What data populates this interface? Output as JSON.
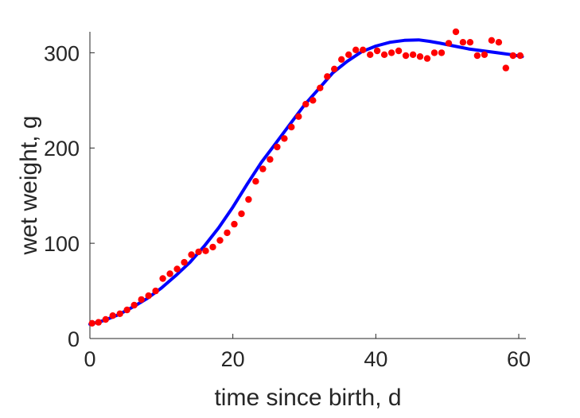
{
  "chart_data": {
    "type": "scatter",
    "xlabel": "time since birth, d",
    "ylabel": "wet weight, g",
    "xlim": [
      0,
      61
    ],
    "ylim": [
      0,
      322
    ],
    "xticks": [
      0,
      20,
      40,
      60
    ],
    "yticks": [
      0,
      100,
      200,
      300
    ],
    "grid": false,
    "legend": "none",
    "series": [
      {
        "kind": "scatter",
        "color": "#ff0000",
        "x": [
          0.3,
          1.2,
          2.2,
          3.2,
          4.2,
          5.2,
          6.2,
          7.2,
          8.2,
          9.2,
          10.2,
          11.2,
          12.2,
          13.2,
          14.2,
          15.2,
          16.2,
          17.2,
          18.2,
          19.2,
          20.2,
          21.2,
          22.2,
          23.2,
          24.2,
          25.2,
          26.2,
          27.2,
          28.2,
          29.2,
          30.2,
          31.2,
          32.2,
          33.2,
          34.2,
          35.2,
          36.2,
          37.2,
          38.2,
          39.2,
          40.2,
          41.2,
          42.2,
          43.2,
          44.2,
          45.2,
          46.2,
          47.2,
          48.2,
          49.2,
          50.2,
          51.2,
          52.2,
          53.2,
          54.2,
          55.2,
          56.2,
          57.2,
          58.2,
          59.2,
          60.2
        ],
        "y": [
          16,
          17,
          20,
          24,
          26,
          30,
          35,
          41,
          45,
          50,
          63,
          68,
          73,
          80,
          88,
          91,
          92,
          96,
          103,
          111,
          120,
          131,
          146,
          165,
          178,
          188,
          201,
          210,
          222,
          233,
          246,
          250,
          263,
          275,
          283,
          293,
          298,
          303,
          303,
          298,
          302,
          298,
          300,
          302,
          297,
          298,
          296,
          294,
          300,
          300,
          310,
          322,
          311,
          311,
          297,
          298,
          313,
          311,
          284,
          297,
          297
        ]
      },
      {
        "kind": "line",
        "color": "#0000ff",
        "x": [
          0,
          2,
          4,
          6,
          8,
          10,
          12,
          14,
          16,
          18,
          20,
          22,
          24,
          26,
          28,
          30,
          32,
          34,
          36,
          38,
          40,
          42,
          44,
          46,
          47.5,
          49,
          51,
          53,
          55,
          57,
          59,
          60.5
        ],
        "y": [
          15,
          19,
          25,
          33,
          42,
          53,
          66,
          80,
          97,
          116,
          138,
          162,
          185,
          205,
          225,
          245,
          262,
          279,
          291,
          301,
          307,
          311,
          313,
          313.5,
          312,
          310,
          307,
          304,
          302,
          300,
          298,
          296
        ]
      }
    ]
  }
}
